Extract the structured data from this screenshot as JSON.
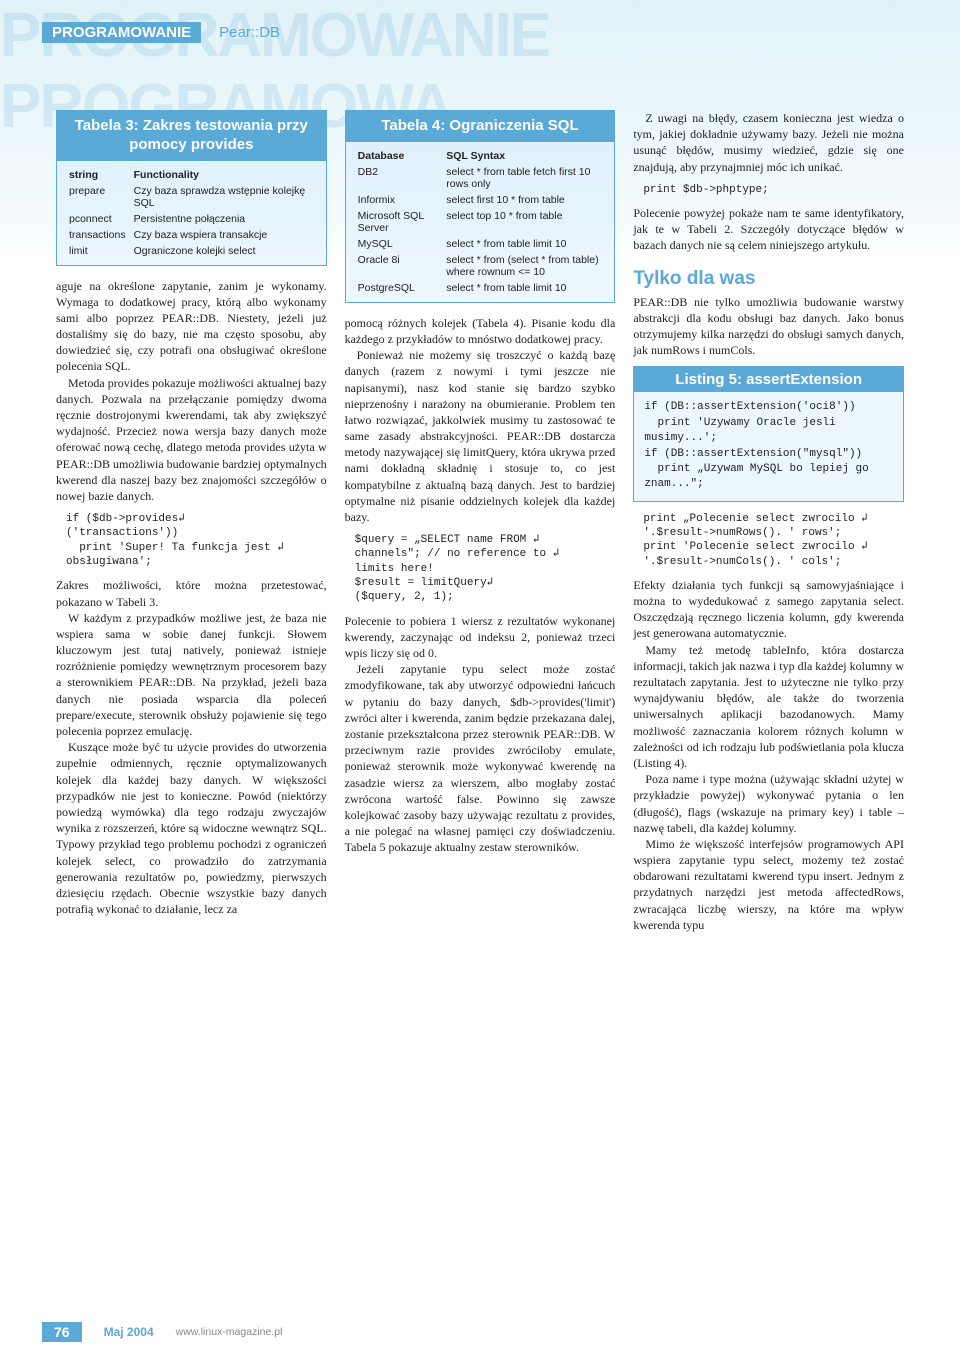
{
  "ghost_bg": "PROGRAMOWANIE PROGRAMOWA",
  "header": {
    "category": "PROGRAMOWANIE",
    "subject": "Pear::DB"
  },
  "tabela3": {
    "title": "Tabela 3:\nZakres testowania przy pomocy provides",
    "columns": [
      "string",
      "Functionality"
    ],
    "rows": [
      [
        "prepare",
        "Czy baza sprawdza wstępnie kolejkę SQL"
      ],
      [
        "pconnect",
        "Persistentne połączenia"
      ],
      [
        "transactions",
        "Czy baza wspiera transakcje"
      ],
      [
        "limit",
        "Ograniczone kolejki select"
      ]
    ]
  },
  "tabela4": {
    "title": "Tabela 4:\nOgraniczenia SQL",
    "columns": [
      "Database",
      "SQL Syntax"
    ],
    "rows": [
      [
        "DB2",
        "select * from table fetch first 10 rows only"
      ],
      [
        "Informix",
        "select first 10 * from table"
      ],
      [
        "Microsoft SQL Server",
        "select top 10 * from table"
      ],
      [
        "MySQL",
        "select * from table limit 10"
      ],
      [
        "Oracle 8i",
        "select * from (select * from table) where rownum <= 10"
      ],
      [
        "PostgreSQL",
        "select * from table limit 10"
      ]
    ]
  },
  "para": {
    "c1p1": "aguje na określone zapytanie, zanim je wykonamy. Wymaga to dodatkowej pracy, którą albo wykonamy sami albo poprzez PEAR::DB. Niestety, jeżeli już dostaliśmy się do bazy, nie ma często sposobu, aby dowiedzieć się, czy potrafi ona obsługiwać określone polecenia SQL.",
    "c1p2": "Metoda provides pokazuje możliwości aktualnej bazy danych. Pozwala na przełączanie pomiędzy dwoma ręcznie dostrojonymi kwerendami, tak aby zwiększyć wydajność. Przecież nowa wersja bazy danych może oferować nową cechę, dlatego metoda provides użyta w PEAR::DB umożliwia budowanie bardziej optymalnych kwerend dla naszej bazy bez znajomości szczegółów o nowej bazie danych.",
    "c1p3": "Zakres możliwości, które można przetestować, pokazano w Tabeli 3.",
    "c1p4": "W każdym z przypadków możliwe jest, że baza nie wspiera sama w sobie danej funkcji. Słowem kluczowym jest tutaj natively, ponieważ istnieje rozróżnienie pomiędzy wewnętrznym procesorem bazy a sterownikiem PEAR::DB. Na przykład, jeżeli baza danych nie posiada wsparcia dla poleceń prepare/execute, sterownik obsłuży pojawienie się tego polecenia poprzez emulację.",
    "c1p5": "Kuszące może być tu użycie provides do utworzenia zupełnie odmiennych, ręcznie optymalizowanych kolejek dla każdej bazy danych. W większości przypadków nie jest to konieczne. Powód (niektórzy powiedzą wymówka) dla tego rodzaju zwyczajów wynika z rozszerzeń, które są widoczne wewnątrz SQL. Typowy przykład tego problemu pochodzi z ograniczeń kolejek select, co prowadziło do zatrzymania generowania rezultatów po, powiedzmy, pierwszych dziesięciu rzędach. Obecnie wszystkie bazy danych potrafią wykonać to działanie, lecz za",
    "c2p1": "pomocą różnych kolejek (Tabela 4). Pisanie kodu dla każdego z przykładów to mnóstwo dodatkowej pracy.",
    "c2p2": "Ponieważ nie możemy się troszczyć o każdą bazę danych (razem z nowymi i tymi jeszcze nie napisanymi), nasz kod stanie się bardzo szybko nieprzenośny i narażony na obumieranie. Problem ten łatwo rozwiązać, jakkolwiek musimy tu zastosować te same zasady abstrakcyjności. PEAR::DB dostarcza metody nazywającej się limitQuery, która ukrywa przed nami dokładną składnię i stosuje to, co jest kompatybilne z aktualną bazą danych. Jest to bardziej optymalne niż pisanie oddzielnych kolejek dla każdej bazy.",
    "c2p3": "Polecenie to pobiera 1 wiersz z rezultatów wykonanej kwerendy, zaczynając od indeksu 2, ponieważ trzeci wpis liczy się od 0.",
    "c2p4": "Jeżeli zapytanie typu select może zostać zmodyfikowane, tak aby utworzyć odpowiedni łańcuch w pytaniu do bazy danych, $db->provides('limit') zwróci alter i kwerenda, zanim będzie przekazana dalej, zostanie przekształcona przez sterownik PEAR::DB. W przeciwnym razie provides zwróciłoby emulate, ponieważ sterownik może wykonywać kwerendę na zasadzie wiersz za wierszem, albo mogłaby zostać zwrócona wartość false. Powinno się zawsze kolejkować zasoby bazy używając rezultatu z provides, a nie polegać na własnej pamięci czy doświadczeniu. Tabela 5 pokazuje aktualny zestaw sterowników.",
    "c3p1": "Z uwagi na błędy, czasem konieczna jest wiedza o tym, jakiej dokładnie używamy bazy. Jeżeli nie można usunąć błędów, musimy wiedzieć, gdzie się one znajdują, aby przynajmniej móc ich unikać.",
    "c3p2": "Polecenie powyżej pokaże nam te same identyfikatory, jak te w Tabeli 2. Szczegóły dotyczące błędów w bazach danych nie są celem niniejszego artykułu.",
    "c3h": "Tylko dla was",
    "c3p3": "PEAR::DB nie tylko umożliwia budowanie warstwy abstrakcji dla kodu obsługi baz danych. Jako bonus otrzymujemy kilka narzędzi do obsługi samych danych, jak numRows i numCols.",
    "c3p4": "Efekty działania tych funkcji są samowyjaśniające i można to wydedukować z samego zapytania select. Oszczędzają ręcznego liczenia kolumn, gdy kwerenda jest generowana automatycznie.",
    "c3p5": "Mamy też metodę tableInfo, która dostarcza informacji, takich jak nazwa i typ dla każdej kolumny w rezultatach zapytania. Jest to użyteczne nie tylko przy wynajdywaniu błędów, ale także do tworzenia uniwersalnych aplikacji bazodanowych. Mamy możliwość zaznaczania kolorem różnych kolumn w zależności od ich rodzaju lub podświetlania pola klucza (Listing 4).",
    "c3p6": "Poza name i type można (używając składni użytej w przykładzie powyżej) wykonywać pytania o len (długość), flags (wskazuje na primary key) i table – nazwę tabeli, dla każdej kolumny.",
    "c3p7": "Mimo że większość interfejsów programowych API wspiera zapytanie typu select, możemy też zostać obdarowani rezultatami kwerend typu insert. Jednym z przydatnych narzędzi jest metoda affectedRows, zwracająca liczbę wierszy, na które ma wpływ kwerenda typu"
  },
  "code": {
    "c1": "if ($db->provides↲\n('transactions'))\n  print 'Super! Ta funkcja jest ↲\nobsługiwana';",
    "c2": "$query = „SELECT name FROM ↲\nchannels\"; // no reference to ↲\nlimits here!\n$result = limitQuery↲\n($query, 2, 1);",
    "c3a": "print $db->phptype;",
    "c3b": "print „Polecenie select zwrocilo ↲\n'.$result->numRows(). ' rows';\nprint 'Polecenie select zwrocilo ↲\n'.$result->numCols(). ' cols';"
  },
  "listing5": {
    "title": "Listing 5: assertExtension",
    "body": "if (DB::assertExtension('oci8'))\n  print 'Uzywamy Oracle jesli musimy...';\nif (DB::assertExtension(\"mysql\"))\n  print „Uzywam MySQL bo lepiej go znam...\";"
  },
  "footer": {
    "page": "76",
    "date": "Maj 2004",
    "url": "www.linux-magazine.pl"
  }
}
